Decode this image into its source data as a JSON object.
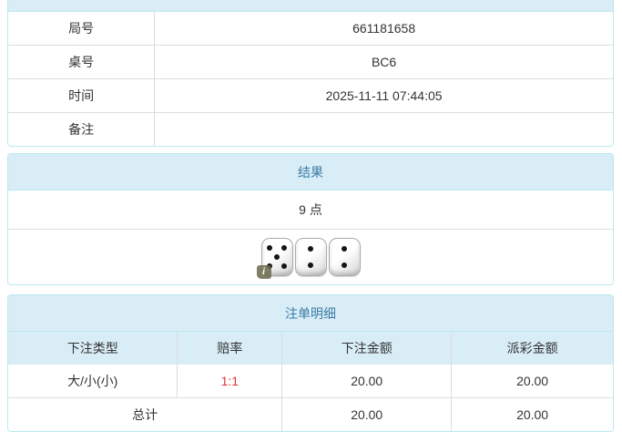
{
  "colors": {
    "header_bg": "#d9edf7",
    "header_text": "#3a7ca5",
    "panel_border": "#bce8f1",
    "cell_border": "#dddddd",
    "body_text": "#333333",
    "odds_red": "#e53333"
  },
  "game_info": {
    "rows": [
      {
        "label": "局号",
        "value": "661181658"
      },
      {
        "label": "桌号",
        "value": "BC6"
      },
      {
        "label": "时间",
        "value": "2025-11-11 07:44:05"
      },
      {
        "label": "备注",
        "value": ""
      }
    ]
  },
  "result": {
    "title": "结果",
    "points": "9 点",
    "dice": [
      5,
      2,
      2
    ],
    "info_icon_glyph": "i"
  },
  "bet_details": {
    "title": "注单明细",
    "columns": [
      "下注类型",
      "赔率",
      "下注金额",
      "派彩金额"
    ],
    "rows": [
      {
        "bet_type": "大/小(小)",
        "odds": "1:1",
        "bet_amount": "20.00",
        "payout_amount": "20.00"
      }
    ],
    "total": {
      "label": "总计",
      "bet_amount": "20.00",
      "payout_amount": "20.00"
    }
  }
}
